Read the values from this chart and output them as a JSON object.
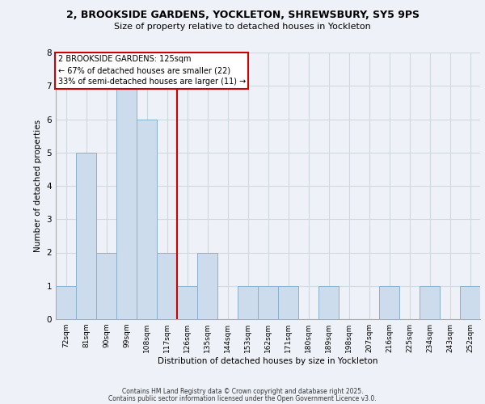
{
  "title_line1": "2, BROOKSIDE GARDENS, YOCKLETON, SHREWSBURY, SY5 9PS",
  "title_line2": "Size of property relative to detached houses in Yockleton",
  "xlabel": "Distribution of detached houses by size in Yockleton",
  "ylabel": "Number of detached properties",
  "bin_labels": [
    "72sqm",
    "81sqm",
    "90sqm",
    "99sqm",
    "108sqm",
    "117sqm",
    "126sqm",
    "135sqm",
    "144sqm",
    "153sqm",
    "162sqm",
    "171sqm",
    "180sqm",
    "189sqm",
    "198sqm",
    "207sqm",
    "216sqm",
    "225sqm",
    "234sqm",
    "243sqm",
    "252sqm"
  ],
  "counts": [
    1,
    5,
    2,
    7,
    6,
    2,
    1,
    2,
    0,
    1,
    1,
    1,
    0,
    1,
    0,
    0,
    1,
    0,
    1,
    0,
    1
  ],
  "bar_color": "#ccdcec",
  "bar_edge_color": "#8ab0cc",
  "vline_color": "#cc0000",
  "annotation_title": "2 BROOKSIDE GARDENS: 125sqm",
  "annotation_line2": "← 67% of detached houses are smaller (22)",
  "annotation_line3": "33% of semi-detached houses are larger (11) →",
  "annotation_edge_color": "#cc0000",
  "ylim": [
    0,
    8
  ],
  "yticks": [
    0,
    1,
    2,
    3,
    4,
    5,
    6,
    7,
    8
  ],
  "grid_color": "#d0d8e0",
  "background_color": "#eef2f8",
  "footer1": "Contains HM Land Registry data © Crown copyright and database right 2025.",
  "footer2": "Contains public sector information licensed under the Open Government Licence v3.0."
}
